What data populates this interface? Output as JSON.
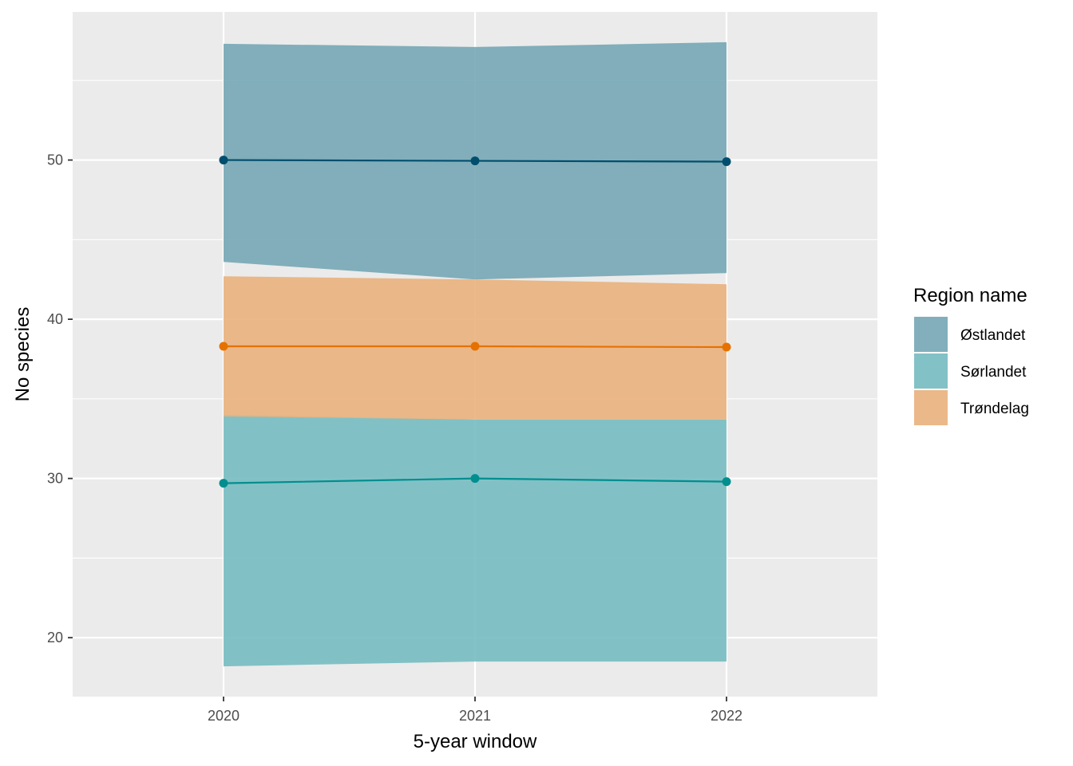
{
  "chart_data": {
    "type": "line",
    "xlabel": "5-year window",
    "ylabel": "No species",
    "x": [
      "2020",
      "2021",
      "2022"
    ],
    "xlim": [
      2019.4,
      2022.6
    ],
    "ylim": [
      16.3,
      59.3
    ],
    "y_ticks": [
      20,
      30,
      40,
      50
    ],
    "grid": true,
    "legend_title": "Region name",
    "legend_position": "right",
    "series": [
      {
        "name": "Østlandet",
        "color": "#004E6E",
        "fill": "#76A7B5",
        "values": [
          50.0,
          49.95,
          49.9
        ],
        "lower": [
          43.6,
          42.5,
          42.9
        ],
        "upper": [
          57.3,
          57.1,
          57.4
        ]
      },
      {
        "name": "Sørlandet",
        "color": "#008E8F",
        "fill": "#76BCC1",
        "values": [
          29.7,
          30.0,
          29.8
        ],
        "lower": [
          18.2,
          18.5,
          18.5
        ],
        "upper": [
          34.0,
          33.7,
          33.7
        ]
      },
      {
        "name": "Trøndelag",
        "color": "#E57200",
        "fill": "#EAB17D",
        "values": [
          38.3,
          38.3,
          38.25
        ],
        "lower": [
          33.9,
          33.7,
          33.7
        ],
        "upper": [
          42.7,
          42.5,
          42.2
        ]
      }
    ]
  }
}
